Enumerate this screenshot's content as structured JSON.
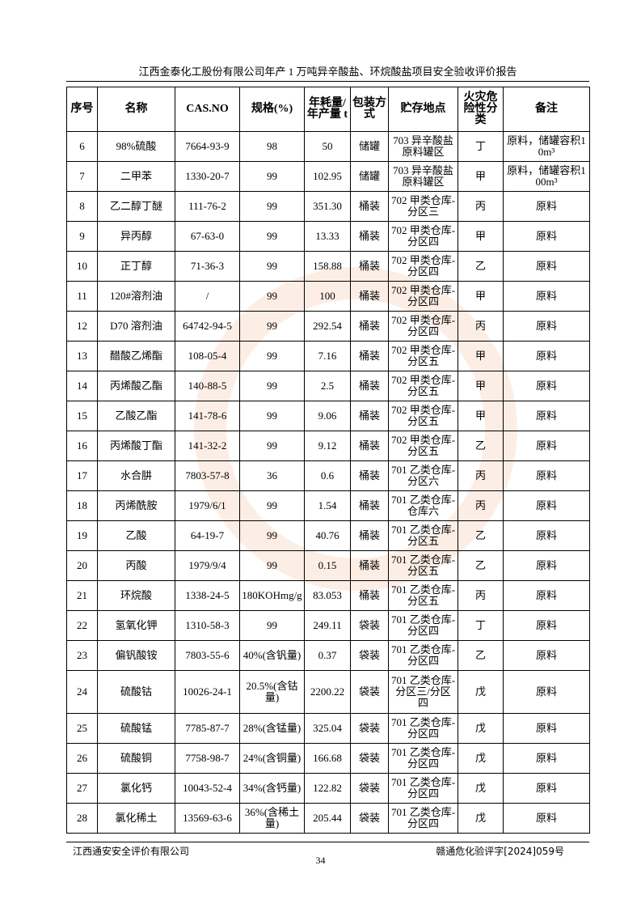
{
  "header": {
    "title": "江西金泰化工股份有限公司年产 1 万吨异辛酸盐、环烷酸盐项目安全验收评价报告"
  },
  "table": {
    "header": [
      "序号",
      "名称",
      "CAS.NO",
      "规格(%)",
      "年耗量/年产量 t",
      "包装方式",
      "贮存地点",
      "火灾危险性分类",
      "备注"
    ],
    "rows": [
      [
        "6",
        "98%硫酸",
        "7664-93-9",
        "98",
        "50",
        "储罐",
        "703 异辛酸盐原料罐区",
        "丁",
        "原料，储罐容积10m³"
      ],
      [
        "7",
        "二甲苯",
        "1330-20-7",
        "99",
        "102.95",
        "储罐",
        "703 异辛酸盐原料罐区",
        "甲",
        "原料，储罐容积100m³"
      ],
      [
        "8",
        "乙二醇丁醚",
        "111-76-2",
        "99",
        "351.30",
        "桶装",
        "702 甲类仓库-分区三",
        "丙",
        "原料"
      ],
      [
        "9",
        "异丙醇",
        "67-63-0",
        "99",
        "13.33",
        "桶装",
        "702 甲类仓库-分区四",
        "甲",
        "原料"
      ],
      [
        "10",
        "正丁醇",
        "71-36-3",
        "99",
        "158.88",
        "桶装",
        "702 甲类仓库-分区四",
        "乙",
        "原料"
      ],
      [
        "11",
        "120#溶剂油",
        "/",
        "99",
        "100",
        "桶装",
        "702 甲类仓库-分区四",
        "甲",
        "原料"
      ],
      [
        "12",
        "D70 溶剂油",
        "64742-94-5",
        "99",
        "292.54",
        "桶装",
        "702 甲类仓库-分区四",
        "丙",
        "原料"
      ],
      [
        "13",
        "醋酸乙烯酯",
        "108-05-4",
        "99",
        "7.16",
        "桶装",
        "702 甲类仓库-分区五",
        "甲",
        "原料"
      ],
      [
        "14",
        "丙烯酸乙酯",
        "140-88-5",
        "99",
        "2.5",
        "桶装",
        "702 甲类仓库-分区五",
        "甲",
        "原料"
      ],
      [
        "15",
        "乙酸乙酯",
        "141-78-6",
        "99",
        "9.06",
        "桶装",
        "702 甲类仓库-分区五",
        "甲",
        "原料"
      ],
      [
        "16",
        "丙烯酸丁酯",
        "141-32-2",
        "99",
        "9.12",
        "桶装",
        "702 甲类仓库-分区五",
        "乙",
        "原料"
      ],
      [
        "17",
        "水合肼",
        "7803-57-8",
        "36",
        "0.6",
        "桶装",
        "701 乙类仓库-分区六",
        "丙",
        "原料"
      ],
      [
        "18",
        "丙烯酰胺",
        "1979/6/1",
        "99",
        "1.54",
        "桶装",
        "701 乙类仓库-仓库六",
        "丙",
        "原料"
      ],
      [
        "19",
        "乙酸",
        "64-19-7",
        "99",
        "40.76",
        "桶装",
        "701 乙类仓库-分区五",
        "乙",
        "原料"
      ],
      [
        "20",
        "丙酸",
        "1979/9/4",
        "99",
        "0.15",
        "桶装",
        "701 乙类仓库-分区五",
        "乙",
        "原料"
      ],
      [
        "21",
        "环烷酸",
        "1338-24-5",
        "180KOHmg/g",
        "83.053",
        "桶装",
        "701 乙类仓库-分区五",
        "丙",
        "原料"
      ],
      [
        "22",
        "氢氧化钾",
        "1310-58-3",
        "99",
        "249.11",
        "袋装",
        "701 乙类仓库-分区四",
        "丁",
        "原料"
      ],
      [
        "23",
        "偏钒酸铵",
        "7803-55-6",
        "40%(含钒量)",
        "0.37",
        "袋装",
        "701 乙类仓库-分区四",
        "乙",
        "原料"
      ],
      [
        "24",
        "硫酸钴",
        "10026-24-1",
        "20.5%(含钴量)",
        "2200.22",
        "袋装",
        "701 乙类仓库-分区三/分区四",
        "戊",
        "原料"
      ],
      [
        "25",
        "硫酸锰",
        "7785-87-7",
        "28%(含锰量)",
        "325.04",
        "袋装",
        "701 乙类仓库-分区四",
        "戊",
        "原料"
      ],
      [
        "26",
        "硫酸铜",
        "7758-98-7",
        "24%(含铜量)",
        "166.68",
        "袋装",
        "701 乙类仓库-分区四",
        "戊",
        "原料"
      ],
      [
        "27",
        "氯化钙",
        "10043-52-4",
        "34%(含钙量)",
        "122.82",
        "袋装",
        "701 乙类仓库-分区四",
        "戊",
        "原料"
      ],
      [
        "28",
        "氯化稀土",
        "13569-63-6",
        "36%(含稀土量)",
        "205.44",
        "袋装",
        "701 乙类仓库-分区四",
        "戊",
        "原料"
      ]
    ]
  },
  "footer": {
    "company": "江西通安安全评价有限公司",
    "doc_number": "赣通危化验评字[2024]059号",
    "page": "34"
  }
}
